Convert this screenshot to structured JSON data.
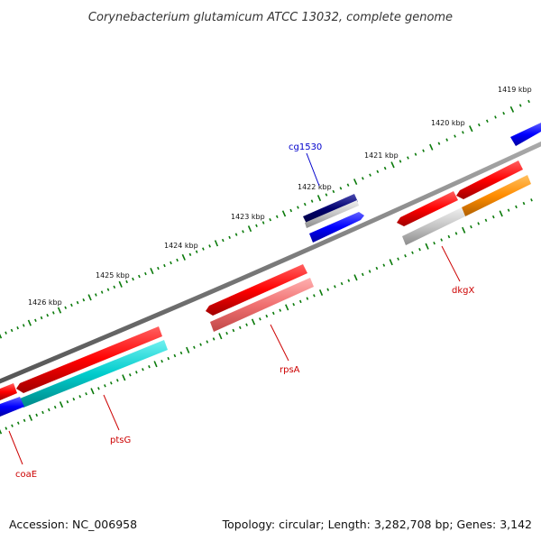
{
  "title": "Corynebacterium glutamicum ATCC 13032, complete genome",
  "footer": {
    "accession": "Accession: NC_006958",
    "topology": "Topology: circular; Length: 3,282,708 bp; Genes: 3,142"
  },
  "ruler": {
    "labels": [
      "1419 kbp",
      "1420 kbp",
      "1421 kbp",
      "1422 kbp",
      "1423 kbp",
      "1424 kbp",
      "1425 kbp",
      "1426 kbp"
    ]
  },
  "genes": [
    {
      "name": "cg1530",
      "color": "#00008b"
    },
    {
      "name": "dkgX",
      "color": "#ff0000"
    },
    {
      "name": "rpsA",
      "color": "#ff0000"
    },
    {
      "name": "ptsG",
      "color": "#ff0000"
    },
    {
      "name": "coaE",
      "color": "#ff0000"
    }
  ],
  "colors": {
    "backbone": "#777777",
    "ticks": "#0a7a0a",
    "cds_forward": "#ff0000",
    "cds_reverse": "#0000ff",
    "highlight_cyan": "#00cccc",
    "highlight_orange": "#ff8c00",
    "highlight_pink": "#f07070",
    "highlight_grey": "#bbbbbb",
    "label_blue": "#0000cc",
    "label_red": "#cc0000"
  }
}
